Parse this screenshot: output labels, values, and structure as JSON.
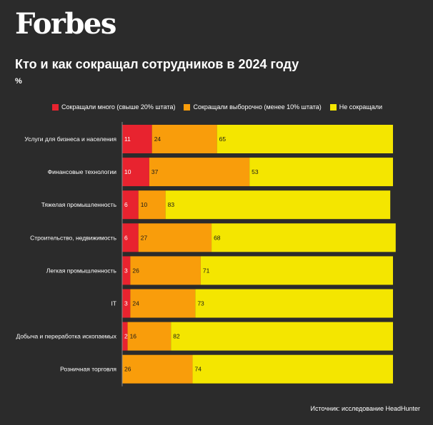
{
  "logo": "Forbes",
  "title": "Кто и как сокращал сотрудников в 2024 году",
  "unit": "%",
  "source": "Источник: исследование HeadHunter",
  "colors": {
    "background": "#2b2b2b",
    "many": "#e8232f",
    "selective": "#f99d0b",
    "none": "#f4e600",
    "axis": "#888888"
  },
  "chart_data": {
    "type": "bar",
    "orientation": "horizontal",
    "stacked": true,
    "legend_position": "top",
    "categories": [
      "Услуги для бизнеса и населения",
      "Финансовые технологии",
      "Тяжелая промышленность",
      "Строительство, недвижимость",
      "Легкая промышленность",
      "IT",
      "Добыча и переработка ископаемых",
      "Розничная торговля"
    ],
    "series": [
      {
        "name": "Сокращали много (свыше 20% штата)",
        "color": "#e8232f",
        "values": [
          11,
          10,
          6,
          6,
          3,
          3,
          2,
          null
        ]
      },
      {
        "name": "Сокращали выборочно (менее 10% штата)",
        "color": "#f99d0b",
        "values": [
          24,
          37,
          10,
          27,
          26,
          24,
          16,
          26
        ]
      },
      {
        "name": "Не сокращали",
        "color": "#f4e600",
        "values": [
          65,
          53,
          83,
          68,
          71,
          73,
          82,
          74
        ]
      }
    ]
  }
}
